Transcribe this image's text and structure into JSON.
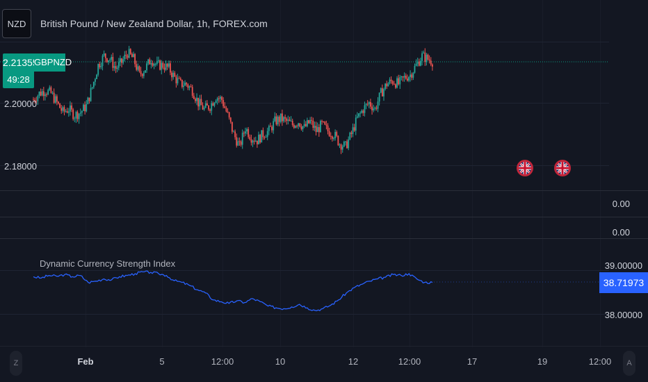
{
  "header": {
    "symbol_badge": "NZD",
    "title": "British Pound / New Zealand Dollar, 1h, FOREX.com"
  },
  "price_tag": {
    "price": "2.21355",
    "symbol": "GBPNZD",
    "countdown": "49:28"
  },
  "price_axis": {
    "labels": [
      "2.20000",
      "2.18000"
    ]
  },
  "empty_panes": {
    "pane1_value": "0.00",
    "pane2_value": "0.00"
  },
  "indicator": {
    "title": "Dynamic Currency Strength Index",
    "current_value": "38.71973",
    "axis_labels": [
      "39.00000",
      "38.00000"
    ]
  },
  "time_axis": {
    "labels": [
      "Feb",
      "5",
      "12:00",
      "10",
      "12",
      "12:00",
      "17",
      "19",
      "12:00"
    ]
  },
  "corner_buttons": {
    "left": "Z",
    "right": "A"
  },
  "colors": {
    "background": "#131722",
    "up_candle": "#26a69a",
    "down_candle": "#ef5350",
    "indicator_line": "#2962ff",
    "price_tag": "#089981"
  },
  "icons": {
    "event_markers": [
      "uk-flag-icon",
      "uk-flag-icon"
    ]
  },
  "chart_data": {
    "type": "candlestick",
    "instrument": "GBPNZD",
    "timeframe": "1h",
    "price_close_path": [
      2.201,
      2.203,
      2.204,
      2.203,
      2.2,
      2.197,
      2.198,
      2.196,
      2.197,
      2.199,
      2.205,
      2.212,
      2.215,
      2.214,
      2.211,
      2.213,
      2.216,
      2.214,
      2.209,
      2.211,
      2.214,
      2.212,
      2.212,
      2.211,
      2.208,
      2.206,
      2.206,
      2.204,
      2.2,
      2.198,
      2.199,
      2.202,
      2.201,
      2.196,
      2.19,
      2.186,
      2.192,
      2.189,
      2.188,
      2.19,
      2.191,
      2.194,
      2.195,
      2.194,
      2.193,
      2.194,
      2.192,
      2.194,
      2.191,
      2.193,
      2.191,
      2.19,
      2.187,
      2.186,
      2.19,
      2.195,
      2.198,
      2.2,
      2.198,
      2.203,
      2.206,
      2.207,
      2.206,
      2.208,
      2.209,
      2.212,
      2.215,
      2.214,
      2.213
    ],
    "indicator_path": [
      38.85,
      38.82,
      38.88,
      38.86,
      38.9,
      38.85,
      38.88,
      38.72,
      38.75,
      38.8,
      38.78,
      38.85,
      38.88,
      38.92,
      38.96,
      38.95,
      38.92,
      38.88,
      38.76,
      38.72,
      38.65,
      38.55,
      38.48,
      38.32,
      38.28,
      38.24,
      38.3,
      38.26,
      38.35,
      38.28,
      38.18,
      38.14,
      38.12,
      38.16,
      38.22,
      38.14,
      38.08,
      38.12,
      38.2,
      38.32,
      38.48,
      38.6,
      38.68,
      38.75,
      38.8,
      38.84,
      38.9,
      38.88,
      38.92,
      38.8,
      38.72,
      38.72
    ]
  }
}
